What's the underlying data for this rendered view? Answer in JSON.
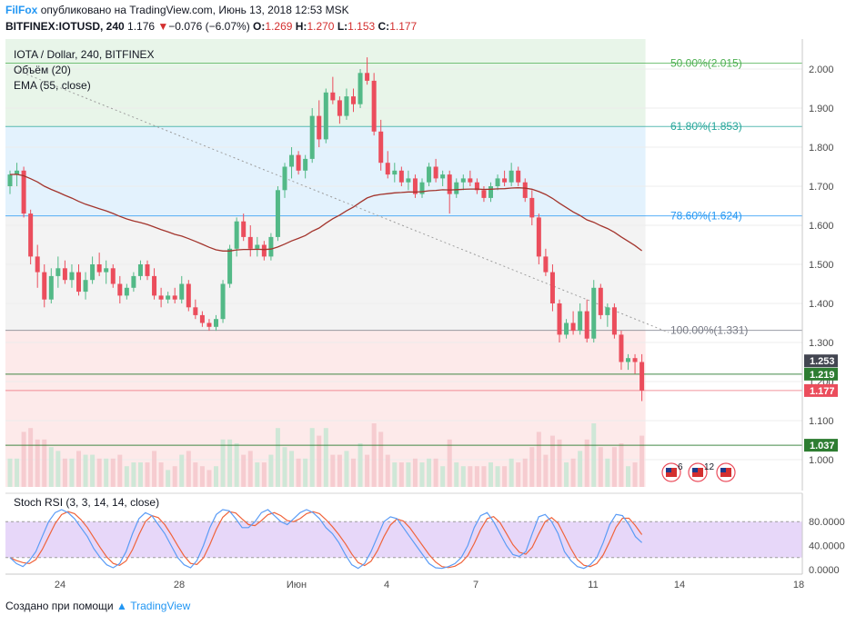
{
  "header": {
    "brand": "FilFox",
    "published": "опубликовано на TradingView.com, Июнь 13, 2018 12:53 MSK",
    "symbol": "BITFINEX:IOTUSD, 240",
    "last": "1.176",
    "arrow": "▼",
    "change": "−0.076 (−6.07%)",
    "o_label": "O:",
    "o_val": "1.269",
    "h_label": "H:",
    "h_val": "1.270",
    "l_label": "L:",
    "l_val": "1.153",
    "c_label": "C:",
    "c_val": "1.177"
  },
  "legend": {
    "title": "IOTA / Dollar, 240, BITFINEX",
    "volume": "Объём (20)",
    "ema": "EMA (55, close)"
  },
  "stoch_label": "Stoch RSI (3, 3, 14, 14, close)",
  "footer": {
    "created": "Создано при помощи",
    "brand": "TradingView"
  },
  "price_labels": {
    "p1": "1.253",
    "p2": "1.219",
    "p3": "1.177",
    "p4": "1.037"
  },
  "event_counts": [
    "6",
    "12"
  ],
  "colors": {
    "up": "#53b987",
    "down": "#eb4d5c",
    "ema": "#a3342c",
    "fib50": "#4caf50",
    "fib618": "#26a69a",
    "fib786": "#2196f3",
    "fib100": "#787b86",
    "green_line": "#2e7d32",
    "stoch_k": "#5b9cf6",
    "stoch_d": "#f0643c",
    "stoch_bg": "#e1cdf7"
  },
  "chart_data": {
    "type": "candlestick",
    "y_ticks": [
      "2.000",
      "1.900",
      "1.800",
      "1.700",
      "1.600",
      "1.500",
      "1.400",
      "1.300",
      "1.200",
      "1.100",
      "1.000"
    ],
    "x_ticks": [
      "24",
      "28",
      "Июн",
      "4",
      "7",
      "11",
      "14",
      "18"
    ],
    "fib_levels": [
      {
        "label": "50.00%(2.015)",
        "value": 2.015
      },
      {
        "label": "61.80%(1.853)",
        "value": 1.853
      },
      {
        "label": "78.60%(1.624)",
        "value": 1.624
      },
      {
        "label": "100.00%(1.331)",
        "value": 1.331
      }
    ],
    "horizontal_lines": [
      1.219,
      1.037,
      1.177
    ],
    "stoch_ticks": [
      "80.0000",
      "40.0000",
      "0.0000"
    ],
    "candles_approx": [
      [
        1.7,
        1.74,
        1.68,
        1.73
      ],
      [
        1.73,
        1.76,
        1.7,
        1.74
      ],
      [
        1.74,
        1.75,
        1.62,
        1.63
      ],
      [
        1.63,
        1.64,
        1.5,
        1.52
      ],
      [
        1.52,
        1.55,
        1.44,
        1.48
      ],
      [
        1.48,
        1.5,
        1.39,
        1.41
      ],
      [
        1.41,
        1.49,
        1.4,
        1.47
      ],
      [
        1.47,
        1.52,
        1.44,
        1.49
      ],
      [
        1.49,
        1.51,
        1.45,
        1.46
      ],
      [
        1.46,
        1.5,
        1.44,
        1.48
      ],
      [
        1.48,
        1.5,
        1.42,
        1.43
      ],
      [
        1.43,
        1.48,
        1.41,
        1.46
      ],
      [
        1.46,
        1.52,
        1.45,
        1.5
      ],
      [
        1.5,
        1.53,
        1.47,
        1.48
      ],
      [
        1.48,
        1.51,
        1.45,
        1.49
      ],
      [
        1.49,
        1.5,
        1.44,
        1.45
      ],
      [
        1.45,
        1.47,
        1.4,
        1.42
      ],
      [
        1.42,
        1.45,
        1.41,
        1.44
      ],
      [
        1.44,
        1.48,
        1.43,
        1.47
      ],
      [
        1.47,
        1.51,
        1.46,
        1.5
      ],
      [
        1.5,
        1.51,
        1.46,
        1.47
      ],
      [
        1.47,
        1.49,
        1.41,
        1.42
      ],
      [
        1.42,
        1.44,
        1.39,
        1.41
      ],
      [
        1.41,
        1.43,
        1.4,
        1.42
      ],
      [
        1.42,
        1.44,
        1.4,
        1.41
      ],
      [
        1.41,
        1.47,
        1.4,
        1.45
      ],
      [
        1.45,
        1.46,
        1.38,
        1.39
      ],
      [
        1.39,
        1.41,
        1.36,
        1.37
      ],
      [
        1.37,
        1.38,
        1.34,
        1.35
      ],
      [
        1.35,
        1.36,
        1.33,
        1.34
      ],
      [
        1.34,
        1.37,
        1.33,
        1.36
      ],
      [
        1.36,
        1.46,
        1.35,
        1.45
      ],
      [
        1.45,
        1.55,
        1.44,
        1.54
      ],
      [
        1.54,
        1.62,
        1.52,
        1.61
      ],
      [
        1.61,
        1.63,
        1.56,
        1.57
      ],
      [
        1.57,
        1.6,
        1.52,
        1.54
      ],
      [
        1.54,
        1.57,
        1.52,
        1.55
      ],
      [
        1.55,
        1.56,
        1.51,
        1.52
      ],
      [
        1.52,
        1.58,
        1.51,
        1.57
      ],
      [
        1.57,
        1.7,
        1.56,
        1.69
      ],
      [
        1.69,
        1.76,
        1.67,
        1.75
      ],
      [
        1.75,
        1.8,
        1.72,
        1.78
      ],
      [
        1.78,
        1.79,
        1.73,
        1.74
      ],
      [
        1.74,
        1.78,
        1.72,
        1.77
      ],
      [
        1.77,
        1.9,
        1.76,
        1.88
      ],
      [
        1.88,
        1.92,
        1.8,
        1.82
      ],
      [
        1.82,
        1.95,
        1.81,
        1.94
      ],
      [
        1.94,
        1.98,
        1.91,
        1.92
      ],
      [
        1.92,
        1.93,
        1.86,
        1.88
      ],
      [
        1.88,
        1.95,
        1.87,
        1.93
      ],
      [
        1.93,
        1.95,
        1.89,
        1.91
      ],
      [
        1.91,
        2.0,
        1.9,
        1.99
      ],
      [
        1.99,
        2.03,
        1.96,
        1.97
      ],
      [
        1.97,
        1.99,
        1.83,
        1.84
      ],
      [
        1.84,
        1.87,
        1.74,
        1.76
      ],
      [
        1.76,
        1.79,
        1.72,
        1.73
      ],
      [
        1.73,
        1.76,
        1.71,
        1.74
      ],
      [
        1.74,
        1.75,
        1.7,
        1.71
      ],
      [
        1.71,
        1.74,
        1.69,
        1.72
      ],
      [
        1.72,
        1.73,
        1.67,
        1.68
      ],
      [
        1.68,
        1.72,
        1.67,
        1.71
      ],
      [
        1.71,
        1.76,
        1.7,
        1.75
      ],
      [
        1.75,
        1.77,
        1.71,
        1.72
      ],
      [
        1.72,
        1.74,
        1.7,
        1.73
      ],
      [
        1.73,
        1.74,
        1.63,
        1.68
      ],
      [
        1.68,
        1.72,
        1.67,
        1.71
      ],
      [
        1.71,
        1.73,
        1.69,
        1.72
      ],
      [
        1.72,
        1.74,
        1.7,
        1.71
      ],
      [
        1.71,
        1.72,
        1.68,
        1.69
      ],
      [
        1.69,
        1.7,
        1.66,
        1.67
      ],
      [
        1.67,
        1.71,
        1.66,
        1.7
      ],
      [
        1.7,
        1.73,
        1.69,
        1.72
      ],
      [
        1.72,
        1.74,
        1.7,
        1.71
      ],
      [
        1.71,
        1.76,
        1.7,
        1.74
      ],
      [
        1.74,
        1.75,
        1.7,
        1.71
      ],
      [
        1.71,
        1.72,
        1.66,
        1.67
      ],
      [
        1.67,
        1.69,
        1.6,
        1.62
      ],
      [
        1.62,
        1.63,
        1.5,
        1.52
      ],
      [
        1.52,
        1.54,
        1.47,
        1.48
      ],
      [
        1.48,
        1.5,
        1.38,
        1.4
      ],
      [
        1.4,
        1.41,
        1.3,
        1.32
      ],
      [
        1.32,
        1.36,
        1.31,
        1.35
      ],
      [
        1.35,
        1.38,
        1.32,
        1.33
      ],
      [
        1.33,
        1.4,
        1.32,
        1.38
      ],
      [
        1.38,
        1.41,
        1.3,
        1.31
      ],
      [
        1.31,
        1.46,
        1.3,
        1.44
      ],
      [
        1.44,
        1.45,
        1.36,
        1.37
      ],
      [
        1.37,
        1.4,
        1.34,
        1.39
      ],
      [
        1.39,
        1.4,
        1.31,
        1.32
      ],
      [
        1.32,
        1.33,
        1.23,
        1.25
      ],
      [
        1.25,
        1.27,
        1.23,
        1.26
      ],
      [
        1.26,
        1.27,
        1.22,
        1.25
      ],
      [
        1.25,
        1.27,
        1.15,
        1.177
      ]
    ]
  }
}
